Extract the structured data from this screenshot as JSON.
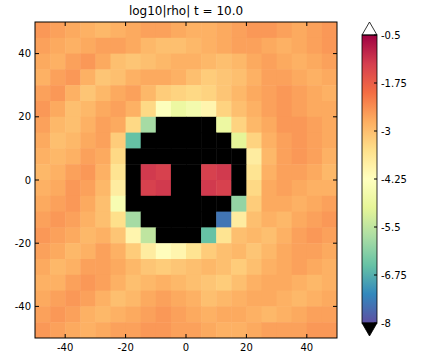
{
  "chart_data": {
    "type": "heatmap",
    "title": "log10|rho|  t =  10.0",
    "x": [
      -47.5,
      -42.5,
      -37.5,
      -32.5,
      -27.5,
      -22.5,
      -17.5,
      -12.5,
      -7.5,
      -2.5,
      2.5,
      7.5,
      12.5,
      17.5,
      22.5,
      27.5,
      32.5,
      37.5,
      42.5,
      47.5
    ],
    "y": [
      47.5,
      42.5,
      37.5,
      32.5,
      27.5,
      22.5,
      17.5,
      12.5,
      7.5,
      2.5,
      -2.5,
      -7.5,
      -12.5,
      -17.5,
      -22.5,
      -27.5,
      -32.5,
      -37.5,
      -42.5,
      -47.5
    ],
    "cells": [
      [
        -2.5,
        -2.6,
        -2.7,
        -2.8,
        -2.9,
        -2.8,
        -2.7,
        -2.6,
        -2.6,
        -2.7,
        -2.8,
        -2.8,
        -2.7,
        -2.6,
        -2.5,
        -2.5,
        -2.6,
        -2.7,
        -2.6,
        -2.5
      ],
      [
        -2.6,
        -2.7,
        -2.8,
        -2.7,
        -2.6,
        -2.6,
        -2.7,
        -2.9,
        -3.0,
        -3.0,
        -2.9,
        -2.8,
        -2.7,
        -2.6,
        -2.6,
        -2.7,
        -2.8,
        -2.7,
        -2.6,
        -2.5
      ],
      [
        -2.7,
        -2.8,
        -2.6,
        -2.5,
        -2.7,
        -3.0,
        -3.1,
        -3.0,
        -2.9,
        -2.8,
        -2.8,
        -2.9,
        -3.0,
        -2.9,
        -2.7,
        -2.6,
        -2.7,
        -2.8,
        -2.7,
        -2.6
      ],
      [
        -2.8,
        -2.6,
        -2.5,
        -2.8,
        -3.1,
        -3.0,
        -2.8,
        -2.7,
        -2.7,
        -2.8,
        -3.0,
        -3.2,
        -3.1,
        -3.0,
        -2.8,
        -2.6,
        -2.6,
        -2.7,
        -2.8,
        -2.7
      ],
      [
        -2.6,
        -2.5,
        -2.8,
        -3.1,
        -2.9,
        -2.7,
        -2.6,
        -2.9,
        -3.2,
        -3.3,
        -3.4,
        -3.3,
        -3.1,
        -2.9,
        -2.7,
        -2.6,
        -2.5,
        -2.6,
        -2.7,
        -2.8
      ],
      [
        -2.5,
        -2.7,
        -3.0,
        -2.9,
        -2.7,
        -2.6,
        -2.8,
        -3.4,
        -4.3,
        -4.8,
        -4.6,
        -4.0,
        -3.3,
        -3.0,
        -2.8,
        -2.6,
        -2.5,
        -2.6,
        -2.7,
        -2.7
      ],
      [
        -2.6,
        -2.9,
        -3.0,
        -2.8,
        -2.6,
        -2.7,
        -3.4,
        -5.8,
        -9,
        -9,
        -9,
        -8.5,
        -4.8,
        -3.3,
        -2.9,
        -2.7,
        -2.5,
        -2.5,
        -2.6,
        -2.7
      ],
      [
        -2.7,
        -3.0,
        -2.9,
        -2.7,
        -2.6,
        -3.2,
        -6.5,
        -9,
        -9,
        -9,
        -9,
        -9,
        -9,
        -5.0,
        -3.3,
        -2.8,
        -2.6,
        -2.5,
        -2.6,
        -2.7
      ],
      [
        -2.8,
        -2.9,
        -2.8,
        -2.6,
        -2.7,
        -3.4,
        -9,
        -9,
        -9,
        -9,
        -9,
        -9,
        -9,
        -9,
        -3.8,
        -2.9,
        -2.6,
        -2.5,
        -2.6,
        -2.8
      ],
      [
        -2.9,
        -2.8,
        -2.6,
        -2.5,
        -2.8,
        -3.6,
        -9,
        -1.2,
        -1.3,
        -9,
        -9,
        -1.3,
        -1.2,
        -9,
        -3.6,
        -2.8,
        -2.6,
        -2.6,
        -2.7,
        -2.9
      ],
      [
        -2.8,
        -2.7,
        -2.5,
        -2.6,
        -2.9,
        -3.8,
        -9,
        -1.3,
        -1.2,
        -9,
        -9,
        -1.2,
        -1.3,
        -9,
        -3.4,
        -2.7,
        -2.6,
        -2.7,
        -2.8,
        -2.8
      ],
      [
        -2.7,
        -2.6,
        -2.5,
        -2.7,
        -3.0,
        -4.5,
        -9,
        -9,
        -9,
        -9,
        -9,
        -9,
        -9,
        -6.0,
        -3.2,
        -2.7,
        -2.7,
        -2.8,
        -2.7,
        -2.6
      ],
      [
        -2.6,
        -2.5,
        -2.6,
        -2.8,
        -3.0,
        -3.5,
        -5.8,
        -9,
        -9,
        -9,
        -9,
        -9,
        -7.5,
        -3.8,
        -3.0,
        -2.8,
        -2.9,
        -2.7,
        -2.6,
        -2.5
      ],
      [
        -2.5,
        -2.6,
        -2.7,
        -2.9,
        -2.8,
        -3.1,
        -4.0,
        -5.5,
        -8.5,
        -9,
        -9,
        -6.5,
        -3.6,
        -3.0,
        -2.9,
        -3.0,
        -2.8,
        -2.6,
        -2.5,
        -2.6
      ],
      [
        -2.6,
        -2.7,
        -2.9,
        -2.8,
        -2.6,
        -2.8,
        -3.2,
        -3.8,
        -4.2,
        -4.0,
        -3.6,
        -3.2,
        -3.0,
        -2.9,
        -3.1,
        -2.9,
        -2.7,
        -2.6,
        -2.6,
        -2.7
      ],
      [
        -2.7,
        -2.9,
        -2.8,
        -2.6,
        -2.6,
        -2.7,
        -2.9,
        -3.1,
        -3.2,
        -3.1,
        -3.0,
        -2.9,
        -3.0,
        -3.2,
        -3.0,
        -2.8,
        -2.7,
        -2.6,
        -2.7,
        -2.8
      ],
      [
        -2.8,
        -2.8,
        -2.6,
        -2.5,
        -2.6,
        -2.8,
        -3.0,
        -2.9,
        -2.8,
        -2.9,
        -3.0,
        -3.1,
        -3.2,
        -3.0,
        -2.8,
        -2.7,
        -2.7,
        -2.8,
        -2.9,
        -2.8
      ],
      [
        -2.7,
        -2.6,
        -2.5,
        -2.6,
        -2.8,
        -3.0,
        -2.9,
        -2.7,
        -2.6,
        -2.7,
        -2.8,
        -3.0,
        -2.9,
        -2.8,
        -2.7,
        -2.7,
        -2.8,
        -2.9,
        -2.8,
        -2.7
      ],
      [
        -2.6,
        -2.5,
        -2.6,
        -2.8,
        -2.9,
        -2.8,
        -2.7,
        -2.6,
        -2.5,
        -2.6,
        -2.7,
        -2.8,
        -2.7,
        -2.7,
        -2.8,
        -2.9,
        -2.8,
        -2.7,
        -2.6,
        -2.6
      ],
      [
        -2.5,
        -2.6,
        -2.7,
        -2.8,
        -2.7,
        -2.6,
        -2.6,
        -2.5,
        -2.5,
        -2.6,
        -2.6,
        -2.7,
        -2.8,
        -2.8,
        -2.7,
        -2.6,
        -2.6,
        -2.6,
        -2.5,
        -2.5
      ]
    ],
    "xlim": [
      -50,
      50
    ],
    "ylim": [
      -50,
      50
    ],
    "xticks": [
      -40,
      -20,
      0,
      20,
      40
    ],
    "yticks": [
      -40,
      -20,
      0,
      20,
      40
    ],
    "colorbar": {
      "range": [
        -8,
        -0.5
      ],
      "ticks": [
        -0.5,
        -1.75,
        -3,
        -4.25,
        -5.5,
        -6.75,
        -8
      ]
    }
  }
}
